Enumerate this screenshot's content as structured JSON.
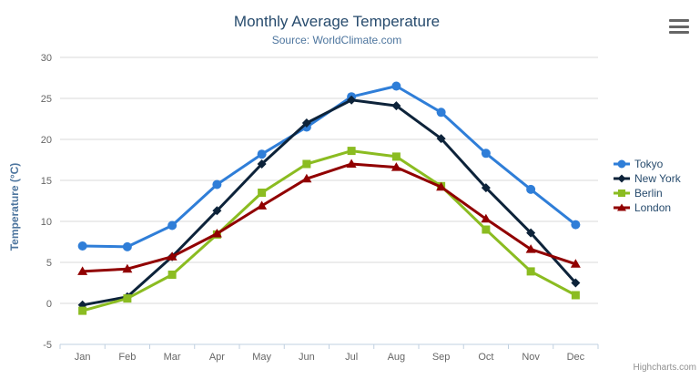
{
  "chart_data": {
    "type": "line",
    "title": "Monthly Average Temperature",
    "subtitle": "Source: WorldClimate.com",
    "xlabel": "",
    "ylabel": "Temperature (°C)",
    "categories": [
      "Jan",
      "Feb",
      "Mar",
      "Apr",
      "May",
      "Jun",
      "Jul",
      "Aug",
      "Sep",
      "Oct",
      "Nov",
      "Dec"
    ],
    "series": [
      {
        "name": "Tokyo",
        "color": "#2f7ed8",
        "marker": "circle",
        "values": [
          7.0,
          6.9,
          9.5,
          14.5,
          18.2,
          21.5,
          25.2,
          26.5,
          23.3,
          18.3,
          13.9,
          9.6
        ]
      },
      {
        "name": "New York",
        "color": "#0d233a",
        "marker": "diamond",
        "values": [
          -0.2,
          0.8,
          5.7,
          11.3,
          17.0,
          22.0,
          24.8,
          24.1,
          20.1,
          14.1,
          8.6,
          2.5
        ]
      },
      {
        "name": "Berlin",
        "color": "#8bbc21",
        "marker": "square",
        "values": [
          -0.9,
          0.6,
          3.5,
          8.4,
          13.5,
          17.0,
          18.6,
          17.9,
          14.3,
          9.0,
          3.9,
          1.0
        ]
      },
      {
        "name": "London",
        "color": "#910000",
        "marker": "triangle",
        "values": [
          3.9,
          4.2,
          5.7,
          8.5,
          11.9,
          15.2,
          17.0,
          16.6,
          14.2,
          10.3,
          6.6,
          4.8
        ]
      }
    ],
    "ylim": [
      -5,
      30
    ],
    "ytick_step": 5,
    "grid": true,
    "legend_position": "right",
    "colors": {
      "grid_line": "#d8d8d8",
      "axis_line": "#c0d0e0",
      "tick_label": "#666666",
      "title_text": "#274b6d",
      "subtitle_text": "#4d759e",
      "legend_text": "#274b6d"
    }
  },
  "ui": {
    "export_menu_icon": "hamburger-icon",
    "credits": "Highcharts.com"
  }
}
